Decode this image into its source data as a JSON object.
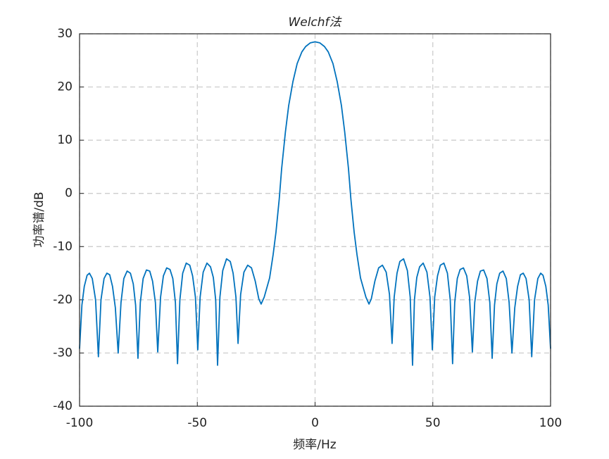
{
  "chart_data": {
    "type": "line",
    "title": "Welchf法",
    "xlabel": "频率/Hz",
    "ylabel": "功率谱/dB",
    "x": [
      -100,
      -99,
      -98,
      -96.8,
      -95.8,
      -94.6,
      -93.2,
      -92,
      -90.9,
      -89.6,
      -88.4,
      -87.2,
      -86,
      -84.8,
      -83.6,
      -82.4,
      -81.2,
      -79.8,
      -78.4,
      -77.2,
      -76.2,
      -75.2,
      -74.2,
      -73,
      -71.6,
      -70.2,
      -69,
      -67.8,
      -66.8,
      -65.6,
      -64.4,
      -63,
      -61.6,
      -60.4,
      -59.3,
      -58.4,
      -57.4,
      -56.2,
      -54.7,
      -53.2,
      -52,
      -50.8,
      -49.8,
      -48.8,
      -47.5,
      -45.9,
      -44.4,
      -43.2,
      -42.2,
      -41.4,
      -40.4,
      -39.2,
      -37.6,
      -36,
      -34.8,
      -33.6,
      -32.7,
      -31.6,
      -30.2,
      -28.6,
      -27,
      -25.4,
      -23.9,
      -22.9,
      -21.6,
      -19.3,
      -17.8,
      -16.6,
      -15.2,
      -14.2,
      -12.6,
      -11.2,
      -9.4,
      -7.6,
      -5.6,
      -4,
      -2,
      0,
      2,
      4,
      5.6,
      7.6,
      9.4,
      11.2,
      12.6,
      14.2,
      15.2,
      16.6,
      17.8,
      19.3,
      21.6,
      22.9,
      23.9,
      25.4,
      27,
      28.6,
      30.2,
      31.6,
      32.7,
      33.6,
      34.8,
      36,
      37.6,
      39.2,
      40.4,
      41.4,
      42.2,
      43.2,
      44.4,
      45.9,
      47.5,
      48.8,
      49.8,
      50.8,
      52,
      53.2,
      54.7,
      56.2,
      57.4,
      58.4,
      59.3,
      60.4,
      61.6,
      63,
      64.4,
      65.6,
      66.8,
      67.8,
      69,
      70.2,
      71.6,
      73,
      74.2,
      75.2,
      76.2,
      77.2,
      78.4,
      79.8,
      81.2,
      82.4,
      83.6,
      84.8,
      86,
      87.2,
      88.4,
      89.6,
      90.9,
      92,
      93.2,
      94.6,
      95.8,
      96.8,
      98,
      99,
      100
    ],
    "series": [
      {
        "color": "#0072bd",
        "values": [
          -29.2,
          -21,
          -17.5,
          -15.4,
          -15,
          -16,
          -20,
          -30.7,
          -20,
          -16,
          -15,
          -15.3,
          -17.5,
          -21.5,
          -30,
          -20.5,
          -16,
          -14.6,
          -15,
          -17,
          -21,
          -31,
          -20.5,
          -16,
          -14.4,
          -14.6,
          -16.5,
          -20.5,
          -29.8,
          -19.5,
          -15.5,
          -14,
          -14.3,
          -16,
          -20.5,
          -32,
          -20,
          -15,
          -13.1,
          -13.5,
          -15.5,
          -19.5,
          -29.4,
          -19.5,
          -14.8,
          -13.1,
          -13.8,
          -15.8,
          -20,
          -32.3,
          -19.5,
          -14.5,
          -12.3,
          -12.8,
          -15,
          -19.5,
          -28.2,
          -19,
          -14.8,
          -13.5,
          -14,
          -16.5,
          -19.8,
          -20.8,
          -19.5,
          -15.9,
          -11.5,
          -7.3,
          -1,
          4.6,
          11.5,
          16.5,
          21,
          24.4,
          26.6,
          27.6,
          28.3,
          28.5,
          28.3,
          27.6,
          26.6,
          24.4,
          21,
          16.5,
          11.5,
          4.6,
          -1,
          -7.3,
          -11.5,
          -15.9,
          -19.5,
          -20.8,
          -19.8,
          -16.5,
          -14,
          -13.5,
          -14.8,
          -19,
          -28.2,
          -19.5,
          -15,
          -12.8,
          -12.3,
          -14.5,
          -19.5,
          -32.3,
          -20,
          -15.8,
          -13.8,
          -13.1,
          -14.8,
          -19.5,
          -29.4,
          -19.5,
          -15.5,
          -13.5,
          -13.1,
          -15,
          -20,
          -32,
          -20.5,
          -16,
          -14.3,
          -14,
          -15.5,
          -19.5,
          -29.8,
          -20.5,
          -16.5,
          -14.6,
          -14.4,
          -16,
          -20.5,
          -31,
          -21,
          -17,
          -15,
          -14.6,
          -16,
          -20.5,
          -30,
          -21.5,
          -17.5,
          -15.3,
          -15,
          -16,
          -20,
          -30.7,
          -20,
          -16,
          -15,
          -15.4,
          -17.5,
          -21,
          -29.2
        ]
      }
    ],
    "xlim": [
      -100,
      100
    ],
    "xticks": [
      -100,
      -50,
      0,
      50,
      100
    ],
    "ylim": [
      -40,
      30
    ],
    "yticks": [
      -40,
      -30,
      -20,
      -10,
      0,
      10,
      20,
      30
    ],
    "grid": true
  }
}
